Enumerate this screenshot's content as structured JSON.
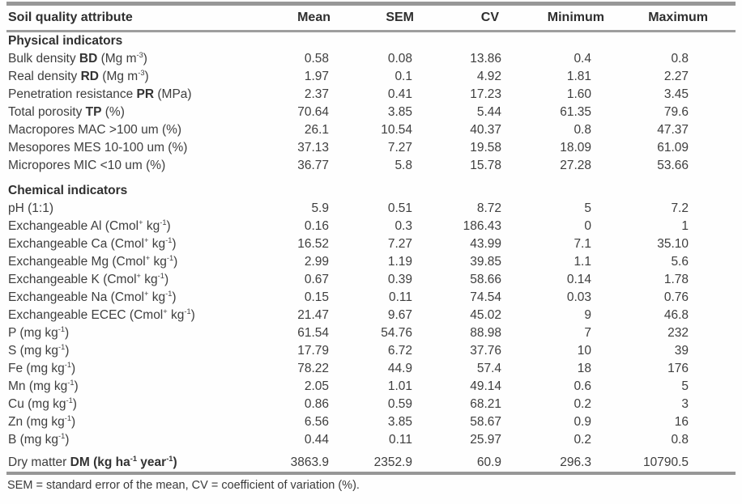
{
  "page": {
    "footer": "SEM = standard error of the mean, CV = coefficient of variation (%)."
  },
  "table": {
    "columns": [
      "Soil quality attribute",
      "Mean",
      "SEM",
      "CV",
      "Minimum",
      "Maximum"
    ],
    "sections": [
      {
        "title": "Physical indicators",
        "rows": [
          {
            "label": "Bulk density **BD** (Mg m^{-3})",
            "values": [
              "0.58",
              "0.08",
              "13.86",
              "0.4",
              "0.8"
            ]
          },
          {
            "label": "Real density **RD** (Mg m^{-3})",
            "values": [
              "1.97",
              "0.1",
              "4.92",
              "1.81",
              "2.27"
            ]
          },
          {
            "label": "Penetration resistance **PR** (MPa)",
            "values": [
              "2.37",
              "0.41",
              "17.23",
              "1.60",
              "3.45"
            ]
          },
          {
            "label": "Total porosity **TP** (%)",
            "values": [
              "70.64",
              "3.85",
              "5.44",
              "61.35",
              "79.6"
            ]
          },
          {
            "label": "Macropores MAC >100 um (%)",
            "values": [
              "26.1",
              "10.54",
              "40.37",
              "0.8",
              "47.37"
            ]
          },
          {
            "label": "Mesopores MES 10-100 um (%)",
            "values": [
              "37.13",
              "7.27",
              "19.58",
              "18.09",
              "61.09"
            ]
          },
          {
            "label": "Micropores MIC <10 um (%)",
            "values": [
              "36.77",
              "5.8",
              "15.78",
              "27.28",
              "53.66"
            ]
          }
        ]
      },
      {
        "title": "Chemical indicators",
        "rows": [
          {
            "label": "pH (1:1)",
            "values": [
              "5.9",
              "0.51",
              "8.72",
              "5",
              "7.2"
            ]
          },
          {
            "label": "Exchangeable Al (Cmol^{+} kg^{-1})",
            "values": [
              "0.16",
              "0.3",
              "186.43",
              "0",
              "1"
            ]
          },
          {
            "label": "Exchangeable Ca (Cmol^{+} kg^{-1})",
            "values": [
              "16.52",
              "7.27",
              "43.99",
              "7.1",
              "35.10"
            ]
          },
          {
            "label": "Exchangeable Mg (Cmol^{+} kg^{-1})",
            "values": [
              "2.99",
              "1.19",
              "39.85",
              "1.1",
              "5.6"
            ]
          },
          {
            "label": "Exchangeable K (Cmol^{+} kg^{-1})",
            "values": [
              "0.67",
              "0.39",
              "58.66",
              "0.14",
              "1.78"
            ]
          },
          {
            "label": "Exchangeable Na (Cmol^{+} kg^{-1})",
            "values": [
              "0.15",
              "0.11",
              "74.54",
              "0.03",
              "0.76"
            ]
          },
          {
            "label": "Exchangeable ECEC (Cmol^{+} kg^{-1})",
            "values": [
              "21.47",
              "9.67",
              "45.02",
              "9",
              "46.8"
            ]
          },
          {
            "label": "P (mg kg^{-1})",
            "values": [
              "61.54",
              "54.76",
              "88.98",
              "7",
              "232"
            ]
          },
          {
            "label": "S (mg kg^{-1})",
            "values": [
              "17.79",
              "6.72",
              "37.76",
              "10",
              "39"
            ]
          },
          {
            "label": "Fe (mg kg^{-1})",
            "values": [
              "78.22",
              "44.9",
              "57.4",
              "18",
              "176"
            ]
          },
          {
            "label": "Mn (mg kg^{-1})",
            "values": [
              "2.05",
              "1.01",
              "49.14",
              "0.6",
              "5"
            ]
          },
          {
            "label": "Cu (mg kg^{-1})",
            "values": [
              "0.86",
              "0.59",
              "68.21",
              "0.2",
              "3"
            ]
          },
          {
            "label": "Zn (mg kg^{-1})",
            "values": [
              "6.56",
              "3.85",
              "58.67",
              "0.9",
              "16"
            ]
          },
          {
            "label": "B (mg kg^{-1})",
            "values": [
              "0.44",
              "0.11",
              "25.97",
              "0.2",
              "0.8"
            ]
          },
          {
            "label": "Dry matter **DM (kg ha^{-1} year^{-1})**",
            "values": [
              "3863.9",
              "2352.9",
              "60.9",
              "296.3",
              "10790.5"
            ],
            "extra_top": true
          }
        ]
      }
    ]
  },
  "chart_data": {
    "type": "table",
    "title": "Soil quality attribute descriptive statistics",
    "columns": [
      "Soil quality attribute",
      "Mean",
      "SEM",
      "CV",
      "Minimum",
      "Maximum"
    ],
    "rows": [
      [
        "Bulk density BD (Mg m-3)",
        0.58,
        0.08,
        13.86,
        0.4,
        0.8
      ],
      [
        "Real density RD (Mg m-3)",
        1.97,
        0.1,
        4.92,
        1.81,
        2.27
      ],
      [
        "Penetration resistance PR (MPa)",
        2.37,
        0.41,
        17.23,
        1.6,
        3.45
      ],
      [
        "Total porosity TP (%)",
        70.64,
        3.85,
        5.44,
        61.35,
        79.6
      ],
      [
        "Macropores MAC >100 um (%)",
        26.1,
        10.54,
        40.37,
        0.8,
        47.37
      ],
      [
        "Mesopores MES 10-100 um (%)",
        37.13,
        7.27,
        19.58,
        18.09,
        61.09
      ],
      [
        "Micropores MIC <10 um (%)",
        36.77,
        5.8,
        15.78,
        27.28,
        53.66
      ],
      [
        "pH (1:1)",
        5.9,
        0.51,
        8.72,
        5,
        7.2
      ],
      [
        "Exchangeable Al (Cmol+ kg-1)",
        0.16,
        0.3,
        186.43,
        0,
        1
      ],
      [
        "Exchangeable Ca (Cmol+ kg-1)",
        16.52,
        7.27,
        43.99,
        7.1,
        35.1
      ],
      [
        "Exchangeable Mg (Cmol+ kg-1)",
        2.99,
        1.19,
        39.85,
        1.1,
        5.6
      ],
      [
        "Exchangeable K (Cmol+ kg-1)",
        0.67,
        0.39,
        58.66,
        0.14,
        1.78
      ],
      [
        "Exchangeable Na (Cmol+ kg-1)",
        0.15,
        0.11,
        74.54,
        0.03,
        0.76
      ],
      [
        "Exchangeable ECEC (Cmol+ kg-1)",
        21.47,
        9.67,
        45.02,
        9,
        46.8
      ],
      [
        "P (mg kg-1)",
        61.54,
        54.76,
        88.98,
        7,
        232
      ],
      [
        "S (mg kg-1)",
        17.79,
        6.72,
        37.76,
        10,
        39
      ],
      [
        "Fe (mg kg-1)",
        78.22,
        44.9,
        57.4,
        18,
        176
      ],
      [
        "Mn (mg kg-1)",
        2.05,
        1.01,
        49.14,
        0.6,
        5
      ],
      [
        "Cu (mg kg-1)",
        0.86,
        0.59,
        68.21,
        0.2,
        3
      ],
      [
        "Zn (mg kg-1)",
        6.56,
        3.85,
        58.67,
        0.9,
        16
      ],
      [
        "B (mg kg-1)",
        0.44,
        0.11,
        25.97,
        0.2,
        0.8
      ],
      [
        "Dry matter DM (kg ha-1 year-1)",
        3863.9,
        2352.9,
        60.9,
        296.3,
        10790.5
      ]
    ]
  }
}
